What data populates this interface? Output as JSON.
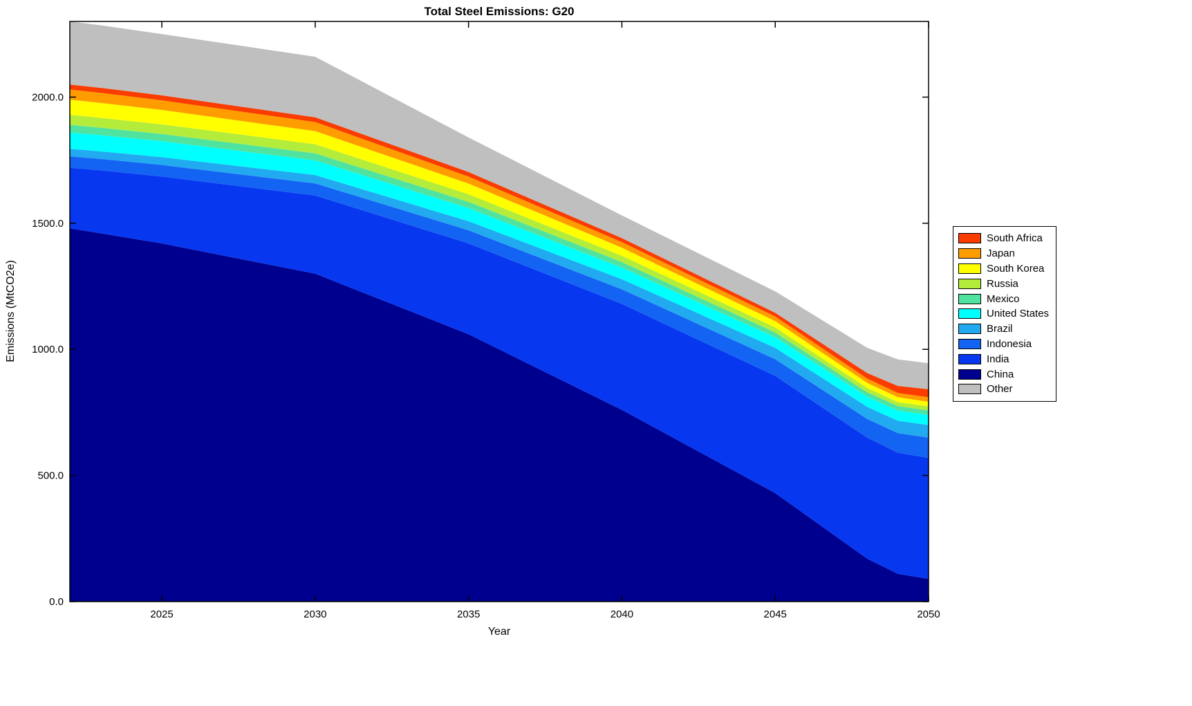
{
  "chart": {
    "title": "Total Steel Emissions: G20",
    "xlabel": "Year",
    "ylabel": "Emissions (MtCO2e)"
  },
  "chart_data": {
    "type": "area",
    "stacked": true,
    "title": "Total Steel Emissions: G20",
    "xlabel": "Year",
    "ylabel": "Emissions (MtCO2e)",
    "xlim": [
      2022,
      2050
    ],
    "ylim": [
      0,
      2300
    ],
    "grid": false,
    "legend_position": "right",
    "x": [
      2022,
      2023,
      2025,
      2030,
      2035,
      2040,
      2045,
      2048,
      2049,
      2050
    ],
    "x_ticks": [
      2025,
      2030,
      2035,
      2040,
      2045,
      2050
    ],
    "y_tick_values": [
      0,
      500,
      1000,
      1500,
      2000
    ],
    "y_tick_labels": [
      "0.0",
      "500.0",
      "1000.0",
      "1500.0",
      "2000.0"
    ],
    "series": [
      {
        "name": "China",
        "color": "#00008f",
        "values": [
          1480,
          1460,
          1420,
          1300,
          1060,
          760,
          430,
          170,
          110,
          90
        ]
      },
      {
        "name": "India",
        "color": "#0837f0",
        "values": [
          240,
          250,
          265,
          310,
          360,
          420,
          465,
          480,
          480,
          480
        ]
      },
      {
        "name": "Indonesia",
        "color": "#1464f4",
        "values": [
          45,
          45,
          46,
          48,
          52,
          58,
          66,
          74,
          78,
          80
        ]
      },
      {
        "name": "Brazil",
        "color": "#22aaf0",
        "values": [
          30,
          30,
          31,
          33,
          36,
          40,
          45,
          48,
          49,
          50
        ]
      },
      {
        "name": "United States",
        "color": "#00ffff",
        "values": [
          65,
          64,
          63,
          58,
          52,
          46,
          42,
          40,
          40,
          40
        ]
      },
      {
        "name": "Mexico",
        "color": "#50e3a0",
        "values": [
          30,
          30,
          29,
          28,
          25,
          22,
          19,
          18,
          18,
          18
        ]
      },
      {
        "name": "Russia",
        "color": "#b4ec3c",
        "values": [
          40,
          39,
          38,
          36,
          30,
          25,
          20,
          17,
          16,
          16
        ]
      },
      {
        "name": "South Korea",
        "color": "#ffff00",
        "values": [
          60,
          59,
          57,
          52,
          42,
          32,
          25,
          20,
          19,
          18
        ]
      },
      {
        "name": "Japan",
        "color": "#ff9d00",
        "values": [
          40,
          40,
          38,
          36,
          28,
          22,
          18,
          17,
          17,
          18
        ]
      },
      {
        "name": "South Africa",
        "color": "#fa3c00",
        "values": [
          20,
          20,
          20,
          19,
          18,
          16,
          15,
          22,
          28,
          32
        ]
      },
      {
        "name": "Other",
        "color": "#bfbfbf",
        "values": [
          250,
          248,
          243,
          240,
          137,
          90,
          85,
          100,
          105,
          103
        ]
      }
    ],
    "legend_order": [
      "South Africa",
      "Japan",
      "South Korea",
      "Russia",
      "Mexico",
      "United States",
      "Brazil",
      "Indonesia",
      "India",
      "China",
      "Other"
    ]
  }
}
